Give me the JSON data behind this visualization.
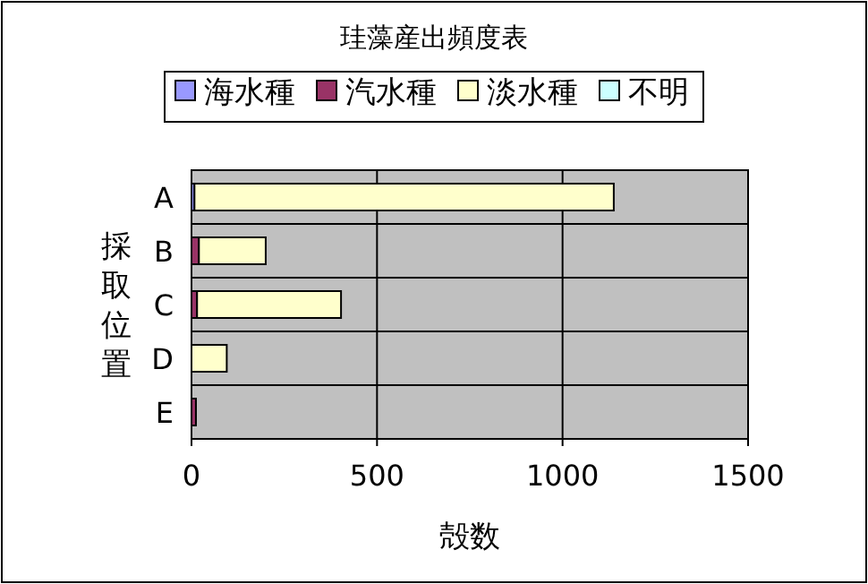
{
  "chart_data": {
    "type": "bar",
    "orientation": "horizontal",
    "stacked": true,
    "title": "珪藻産出頻度表",
    "xlabel": "殻数",
    "ylabel": "採取位置",
    "categories": [
      "A",
      "B",
      "C",
      "D",
      "E"
    ],
    "series": [
      {
        "name": "海水種",
        "color": "#9999ff",
        "values": [
          8,
          0,
          0,
          0,
          0
        ]
      },
      {
        "name": "汽水種",
        "color": "#993366",
        "values": [
          0,
          20,
          15,
          0,
          12
        ]
      },
      {
        "name": "淡水種",
        "color": "#ffffcc",
        "values": [
          1130,
          180,
          388,
          95,
          0
        ]
      },
      {
        "name": "不明",
        "color": "#ccffff",
        "values": [
          0,
          0,
          0,
          0,
          0
        ]
      }
    ],
    "xlim": [
      0,
      1500
    ],
    "xticks": [
      0,
      500,
      1000,
      1500
    ],
    "grid": "x",
    "legend": "top"
  }
}
